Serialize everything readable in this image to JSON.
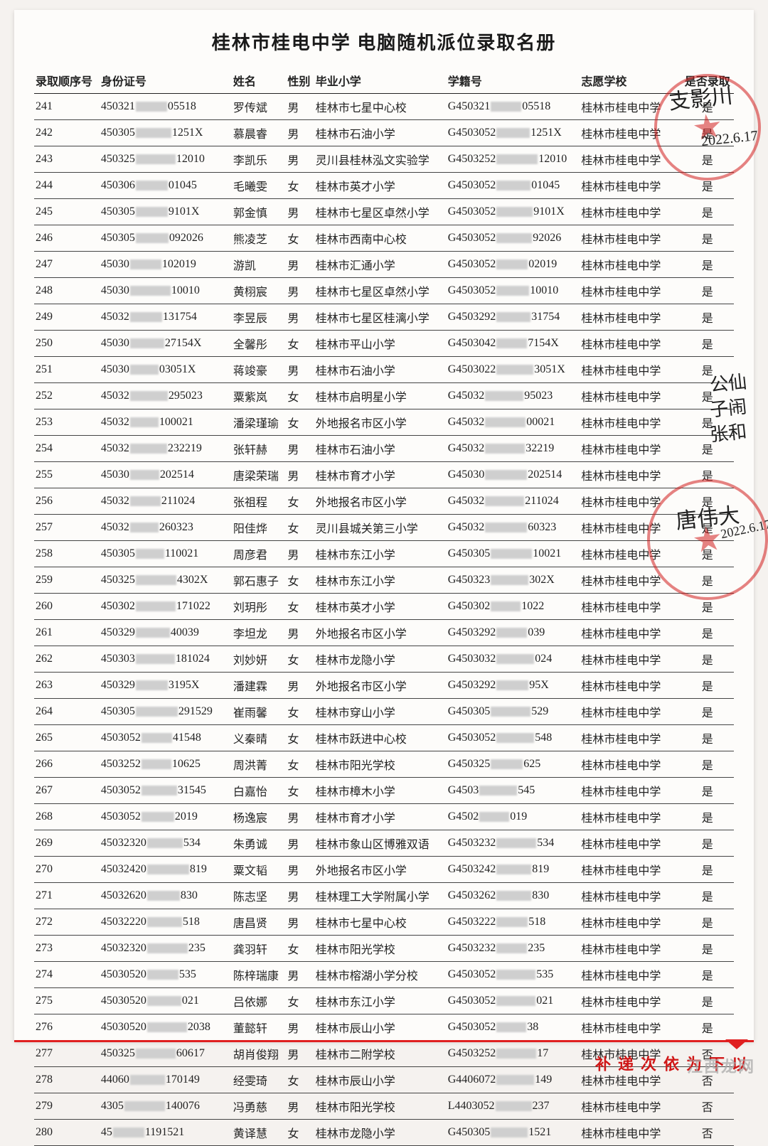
{
  "title": "桂林市桂电中学 电脑随机派位录取名册",
  "columns": {
    "seq": "录取顺序号",
    "id": "身份证号",
    "name": "姓名",
    "sex": "性别",
    "school": "毕业小学",
    "gid": "学籍号",
    "wish": "志愿学校",
    "ok": "是否录取"
  },
  "wish_school": "桂林市桂电中学",
  "yes": "是",
  "no": "否",
  "rows": [
    {
      "seq": "241",
      "id_a": "450321",
      "id_b": "05518",
      "name": "罗传斌",
      "sex": "男",
      "school": "桂林市七星中心校",
      "gid_a": "G450321",
      "gid_b": "05518",
      "ok": "是"
    },
    {
      "seq": "242",
      "id_a": "450305",
      "id_b": "1251X",
      "name": "慕晨睿",
      "sex": "男",
      "school": "桂林市石油小学",
      "gid_a": "G4503052",
      "gid_b": "1251X",
      "ok": "是"
    },
    {
      "seq": "243",
      "id_a": "450325",
      "id_b": "12010",
      "name": "李凯乐",
      "sex": "男",
      "school": "灵川县桂林泓文实验学",
      "gid_a": "G4503252",
      "gid_b": "12010",
      "ok": "是"
    },
    {
      "seq": "244",
      "id_a": "450306",
      "id_b": "01045",
      "name": "毛曦雯",
      "sex": "女",
      "school": "桂林市英才小学",
      "gid_a": "G4503052",
      "gid_b": "01045",
      "ok": "是"
    },
    {
      "seq": "245",
      "id_a": "450305",
      "id_b": "9101X",
      "name": "郭金慎",
      "sex": "男",
      "school": "桂林市七星区卓然小学",
      "gid_a": "G4503052",
      "gid_b": "9101X",
      "ok": "是"
    },
    {
      "seq": "246",
      "id_a": "450305",
      "id_b": "092026",
      "name": "熊凌芝",
      "sex": "女",
      "school": "桂林市西南中心校",
      "gid_a": "G4503052",
      "gid_b": "92026",
      "ok": "是"
    },
    {
      "seq": "247",
      "id_a": "45030",
      "id_b": "102019",
      "name": "游凯",
      "sex": "男",
      "school": "桂林市汇通小学",
      "gid_a": "G4503052",
      "gid_b": "02019",
      "ok": "是"
    },
    {
      "seq": "248",
      "id_a": "45030",
      "id_b": "10010",
      "name": "黄栩宸",
      "sex": "男",
      "school": "桂林市七星区卓然小学",
      "gid_a": "G4503052",
      "gid_b": "10010",
      "ok": "是"
    },
    {
      "seq": "249",
      "id_a": "45032",
      "id_b": "131754",
      "name": "李昱辰",
      "sex": "男",
      "school": "桂林市七星区桂漓小学",
      "gid_a": "G4503292",
      "gid_b": "31754",
      "ok": "是"
    },
    {
      "seq": "250",
      "id_a": "45030",
      "id_b": "27154X",
      "name": "全馨彤",
      "sex": "女",
      "school": "桂林市平山小学",
      "gid_a": "G4503042",
      "gid_b": "7154X",
      "ok": "是"
    },
    {
      "seq": "251",
      "id_a": "45030",
      "id_b": "03051X",
      "name": "蒋竣豪",
      "sex": "男",
      "school": "桂林市石油小学",
      "gid_a": "G4503022",
      "gid_b": "3051X",
      "ok": "是"
    },
    {
      "seq": "252",
      "id_a": "45032",
      "id_b": "295023",
      "name": "粟紫岚",
      "sex": "女",
      "school": "桂林市启明星小学",
      "gid_a": "G45032",
      "gid_b": "95023",
      "ok": "是"
    },
    {
      "seq": "253",
      "id_a": "45032",
      "id_b": "100021",
      "name": "潘梁瑾瑜",
      "sex": "女",
      "school": "外地报名市区小学",
      "gid_a": "G45032",
      "gid_b": "00021",
      "ok": "是"
    },
    {
      "seq": "254",
      "id_a": "45032",
      "id_b": "232219",
      "name": "张轩赫",
      "sex": "男",
      "school": "桂林市石油小学",
      "gid_a": "G45032",
      "gid_b": "32219",
      "ok": "是"
    },
    {
      "seq": "255",
      "id_a": "45030",
      "id_b": "202514",
      "name": "唐梁荣瑞",
      "sex": "男",
      "school": "桂林市育才小学",
      "gid_a": "G45030",
      "gid_b": "202514",
      "ok": "是"
    },
    {
      "seq": "256",
      "id_a": "45032",
      "id_b": "211024",
      "name": "张祖程",
      "sex": "女",
      "school": "外地报名市区小学",
      "gid_a": "G45032",
      "gid_b": "211024",
      "ok": "是"
    },
    {
      "seq": "257",
      "id_a": "45032",
      "id_b": "260323",
      "name": "阳佳烨",
      "sex": "女",
      "school": "灵川县城关第三小学",
      "gid_a": "G45032",
      "gid_b": "60323",
      "ok": "是"
    },
    {
      "seq": "258",
      "id_a": "450305",
      "id_b": "110021",
      "name": "周彦君",
      "sex": "男",
      "school": "桂林市东江小学",
      "gid_a": "G450305",
      "gid_b": "10021",
      "ok": "是"
    },
    {
      "seq": "259",
      "id_a": "450325",
      "id_b": "4302X",
      "name": "郭石惠子",
      "sex": "女",
      "school": "桂林市东江小学",
      "gid_a": "G450323",
      "gid_b": "302X",
      "ok": "是"
    },
    {
      "seq": "260",
      "id_a": "450302",
      "id_b": "171022",
      "name": "刘玥彤",
      "sex": "女",
      "school": "桂林市英才小学",
      "gid_a": "G450302",
      "gid_b": "1022",
      "ok": "是"
    },
    {
      "seq": "261",
      "id_a": "450329",
      "id_b": "40039",
      "name": "李坦龙",
      "sex": "男",
      "school": "外地报名市区小学",
      "gid_a": "G4503292",
      "gid_b": "039",
      "ok": "是"
    },
    {
      "seq": "262",
      "id_a": "450303",
      "id_b": "181024",
      "name": "刘妙妍",
      "sex": "女",
      "school": "桂林市龙隐小学",
      "gid_a": "G4503032",
      "gid_b": "024",
      "ok": "是"
    },
    {
      "seq": "263",
      "id_a": "450329",
      "id_b": "3195X",
      "name": "潘建霖",
      "sex": "男",
      "school": "外地报名市区小学",
      "gid_a": "G4503292",
      "gid_b": "95X",
      "ok": "是"
    },
    {
      "seq": "264",
      "id_a": "450305",
      "id_b": "291529",
      "name": "崔雨馨",
      "sex": "女",
      "school": "桂林市穿山小学",
      "gid_a": "G450305",
      "gid_b": "529",
      "ok": "是"
    },
    {
      "seq": "265",
      "id_a": "4503052",
      "id_b": "41548",
      "name": "义秦晴",
      "sex": "女",
      "school": "桂林市跃进中心校",
      "gid_a": "G4503052",
      "gid_b": "548",
      "ok": "是"
    },
    {
      "seq": "266",
      "id_a": "4503252",
      "id_b": "10625",
      "name": "周洪菁",
      "sex": "女",
      "school": "桂林市阳光学校",
      "gid_a": "G450325",
      "gid_b": "625",
      "ok": "是"
    },
    {
      "seq": "267",
      "id_a": "4503052",
      "id_b": "31545",
      "name": "白嘉怡",
      "sex": "女",
      "school": "桂林市樟木小学",
      "gid_a": "G4503",
      "gid_b": "545",
      "ok": "是"
    },
    {
      "seq": "268",
      "id_a": "4503052",
      "id_b": "2019",
      "name": "杨逸宸",
      "sex": "男",
      "school": "桂林市育才小学",
      "gid_a": "G4502",
      "gid_b": "019",
      "ok": "是"
    },
    {
      "seq": "269",
      "id_a": "45032320",
      "id_b": "534",
      "name": "朱勇诚",
      "sex": "男",
      "school": "桂林市象山区博雅双语",
      "gid_a": "G4503232",
      "gid_b": "534",
      "ok": "是"
    },
    {
      "seq": "270",
      "id_a": "45032420",
      "id_b": "819",
      "name": "粟文韬",
      "sex": "男",
      "school": "外地报名市区小学",
      "gid_a": "G4503242",
      "gid_b": "819",
      "ok": "是"
    },
    {
      "seq": "271",
      "id_a": "45032620",
      "id_b": "830",
      "name": "陈志坚",
      "sex": "男",
      "school": "桂林理工大学附属小学",
      "gid_a": "G4503262",
      "gid_b": "830",
      "ok": "是"
    },
    {
      "seq": "272",
      "id_a": "45032220",
      "id_b": "518",
      "name": "唐昌贤",
      "sex": "男",
      "school": "桂林市七星中心校",
      "gid_a": "G4503222",
      "gid_b": "518",
      "ok": "是"
    },
    {
      "seq": "273",
      "id_a": "45032320",
      "id_b": "235",
      "name": "龚羽轩",
      "sex": "女",
      "school": "桂林市阳光学校",
      "gid_a": "G4503232",
      "gid_b": "235",
      "ok": "是"
    },
    {
      "seq": "274",
      "id_a": "45030520",
      "id_b": "535",
      "name": "陈梓瑞康",
      "sex": "男",
      "school": "桂林市榕湖小学分校",
      "gid_a": "G4503052",
      "gid_b": "535",
      "ok": "是"
    },
    {
      "seq": "275",
      "id_a": "45030520",
      "id_b": "021",
      "name": "吕依娜",
      "sex": "女",
      "school": "桂林市东江小学",
      "gid_a": "G4503052",
      "gid_b": "021",
      "ok": "是"
    },
    {
      "seq": "276",
      "id_a": "45030520",
      "id_b": "2038",
      "name": "董懿轩",
      "sex": "男",
      "school": "桂林市辰山小学",
      "gid_a": "G4503052",
      "gid_b": "38",
      "ok": "是"
    },
    {
      "seq": "277",
      "id_a": "450325",
      "id_b": "60617",
      "name": "胡肖俊翔",
      "sex": "男",
      "school": "桂林市二附学校",
      "gid_a": "G4503252",
      "gid_b": "17",
      "ok": "否"
    },
    {
      "seq": "278",
      "id_a": "44060",
      "id_b": "170149",
      "name": "经雯琦",
      "sex": "女",
      "school": "桂林市辰山小学",
      "gid_a": "G4406072",
      "gid_b": "149",
      "ok": "否"
    },
    {
      "seq": "279",
      "id_a": "4305",
      "id_b": "140076",
      "name": "冯勇慈",
      "sex": "男",
      "school": "桂林市阳光学校",
      "gid_a": "L4403052",
      "gid_b": "237",
      "ok": "否"
    },
    {
      "seq": "280",
      "id_a": "45",
      "id_b": "1191521",
      "name": "黄译慧",
      "sex": "女",
      "school": "桂林市龙隐小学",
      "gid_a": "G450305",
      "gid_b": "1521",
      "ok": "否"
    }
  ],
  "side_note": "以下为依次递补",
  "watermark": "江西龙网",
  "stamp_date": "2022.6.17",
  "colors": {
    "red": "#e02020",
    "stamp": "rgba(210,30,30,0.55)",
    "bg": "#f5f2ef",
    "paper": "#fdfcfa"
  }
}
